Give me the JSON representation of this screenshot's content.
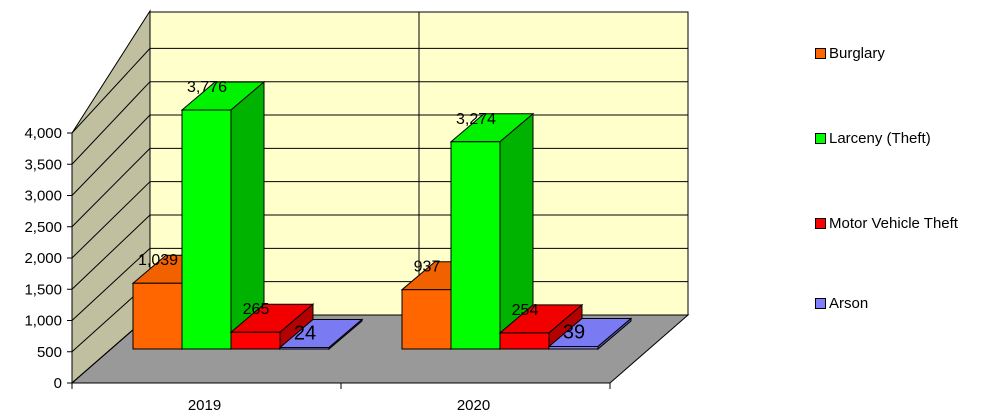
{
  "chart_data": {
    "type": "bar",
    "categories": [
      "2019",
      "2020"
    ],
    "series": [
      {
        "name": "Burglary",
        "values": [
          1039,
          937
        ],
        "color": "#ff6600"
      },
      {
        "name": "Larceny (Theft)",
        "values": [
          3776,
          3274
        ],
        "color": "#00ff00"
      },
      {
        "name": "Motor Vehicle Theft",
        "values": [
          265,
          254
        ],
        "color": "#ff0000"
      },
      {
        "name": "Arson",
        "values": [
          24,
          39
        ],
        "color": "#8080ff"
      }
    ],
    "data_labels": [
      [
        "1,039",
        "3,776",
        "265",
        "24"
      ],
      [
        "937",
        "3,274",
        "254",
        "39"
      ]
    ],
    "ylim": [
      0,
      4000
    ],
    "yticks": [
      "0",
      "500",
      "1,000",
      "1,500",
      "2,000",
      "2,500",
      "3,000",
      "3,500",
      "4,000"
    ],
    "grid": true,
    "three_d": true,
    "legend_position": "right",
    "wall_color": "#ffffcc",
    "side_wall_color": "#c0c0a0",
    "floor_color": "#999999"
  }
}
